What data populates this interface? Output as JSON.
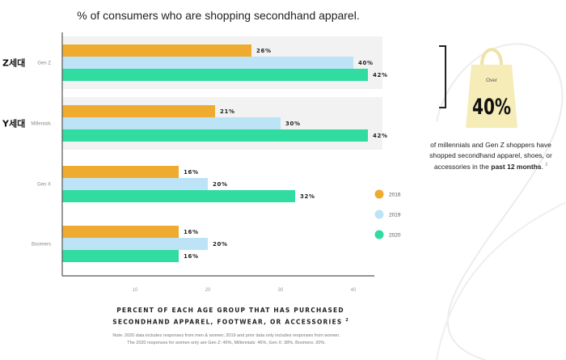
{
  "title": "% of consumers who are shopping secondhand apparel.",
  "chart_data": {
    "type": "bar",
    "orientation": "horizontal",
    "title": "% of consumers who are shopping secondhand apparel.",
    "categories": [
      "Gen Z",
      "Millenials",
      "Gen X",
      "Boomers"
    ],
    "category_korean": [
      "Z세대",
      "Y세대",
      "",
      ""
    ],
    "series": [
      {
        "name": "2016",
        "values": [
          26,
          21,
          16,
          16
        ],
        "color": "#efab2f"
      },
      {
        "name": "2019",
        "values": [
          40,
          30,
          20,
          20
        ],
        "color": "#bde3f7"
      },
      {
        "name": "2020",
        "values": [
          42,
          42,
          32,
          16
        ],
        "color": "#30dca0"
      }
    ],
    "value_suffix": "%",
    "xticks": [
      10,
      20,
      30,
      40
    ],
    "xlim": [
      0,
      43
    ],
    "highlighted_categories": [
      "Gen Z",
      "Millenials"
    ],
    "grid": false,
    "legend_position": "right",
    "xlabel": "PERCENT OF EACH AGE GROUP THAT HAS PURCHASED SECONDHAND APPAREL, FOOTWEAR, OR ACCESSORIES",
    "xlabel_line1": "PERCENT OF EACH AGE GROUP THAT HAS PURCHASED",
    "xlabel_line2": "SECONDHAND APPAREL, FOOTWEAR, OR ACCESSORIES",
    "footnote_mark": "2"
  },
  "note": {
    "line1": "Note: 2020 data includes responses from men & women; 2019 and prior data only includes responses from women.",
    "line2": "The 2020 responses for women only are Gen Z: 46%, Millennials: 46%, Gen X: 38%, Boomers: 20%."
  },
  "callout": {
    "bag_top_text": "Over",
    "bag_big_text": "40%",
    "text_main": "of millennials and Gen Z shoppers have shopped secondhand apparel, shoes, or accessories in the",
    "text_bold": "past 12 months",
    "text_end": ".",
    "footnote": "2"
  },
  "colors": {
    "bag": "#f6ecb8",
    "highlight_band": "#f2f2f2",
    "axis": "#555555"
  }
}
